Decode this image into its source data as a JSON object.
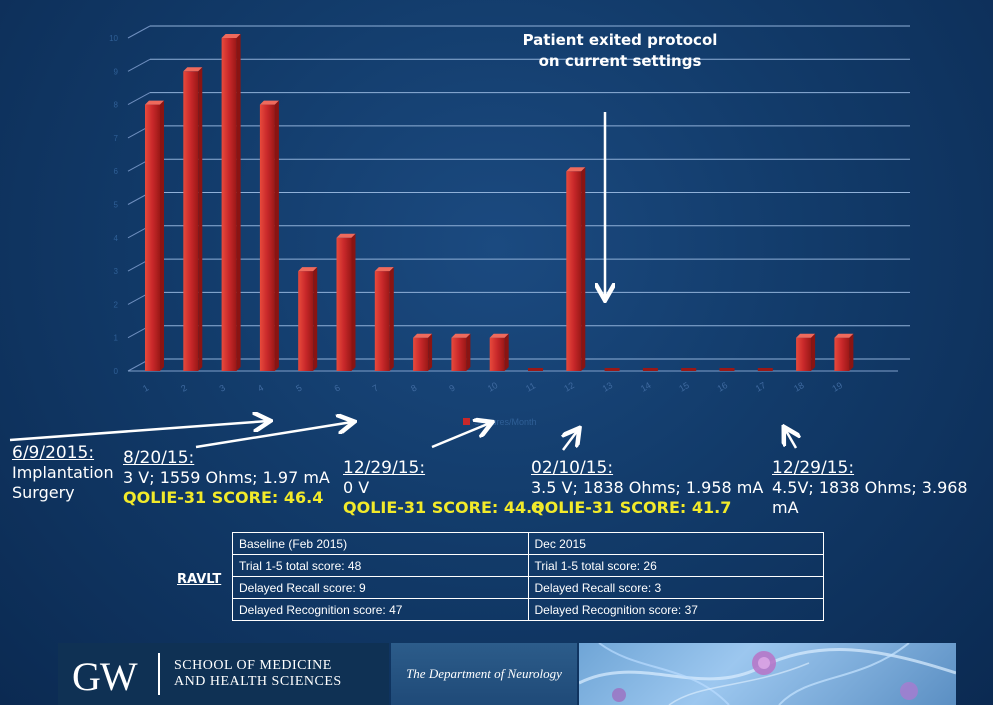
{
  "chart_data": {
    "type": "bar",
    "categories": [
      "1",
      "2",
      "3",
      "4",
      "5",
      "6",
      "7",
      "8",
      "9",
      "10",
      "11",
      "12",
      "13",
      "14",
      "15",
      "16",
      "17",
      "18",
      "19"
    ],
    "values": [
      8,
      9,
      10,
      8,
      3,
      4,
      3,
      1,
      1,
      1,
      0,
      6,
      0,
      0,
      0,
      0,
      0,
      1,
      1
    ],
    "ylim": [
      0,
      10
    ],
    "y_ticks": [
      "0",
      "1",
      "2",
      "3",
      "4",
      "5",
      "6",
      "7",
      "8",
      "9",
      "10"
    ],
    "legend": {
      "label": "Seizures/Month",
      "placement": "bottom-center"
    },
    "grid": true,
    "bar_color": "#c8282a"
  },
  "annotation": "Patient exited protocol on current settings",
  "events": {
    "implant": {
      "date": "6/9/2015:",
      "line1": "Implantation",
      "line2": "Surgery"
    },
    "e1": {
      "date": "8/20/15:",
      "settings": "3 V; 1559 Ohms; 1.97 mA",
      "score": "QOLIE-31 SCORE: 46.4"
    },
    "e2": {
      "date": "12/29/15:",
      "settings": "0 V",
      "score": "QOLIE-31 SCORE: 44.8"
    },
    "e3": {
      "date": "02/10/15:",
      "settings": "3.5 V; 1838 Ohms; 1.958 mA",
      "score": "QOLIE-31 SCORE: 41.7"
    },
    "e4": {
      "date": "12/29/15:",
      "settings": "4.5V; 1838 Ohms; 3.968 mA"
    }
  },
  "ravlt": {
    "title": "RAVLT",
    "rows": [
      [
        "Baseline (Feb 2015)",
        "Dec 2015"
      ],
      [
        "Trial 1-5 total score: 48",
        "Trial 1-5 total score: 26"
      ],
      [
        "Delayed Recall score: 9",
        "Delayed Recall score: 3"
      ],
      [
        "Delayed Recognition score: 47",
        "Delayed Recognition score: 37"
      ]
    ]
  },
  "footer": {
    "logo_letters": "GW",
    "school_line1": "SCHOOL OF MEDICINE",
    "school_line2": "AND HEALTH SCIENCES",
    "department": "The Department of Neurology"
  }
}
